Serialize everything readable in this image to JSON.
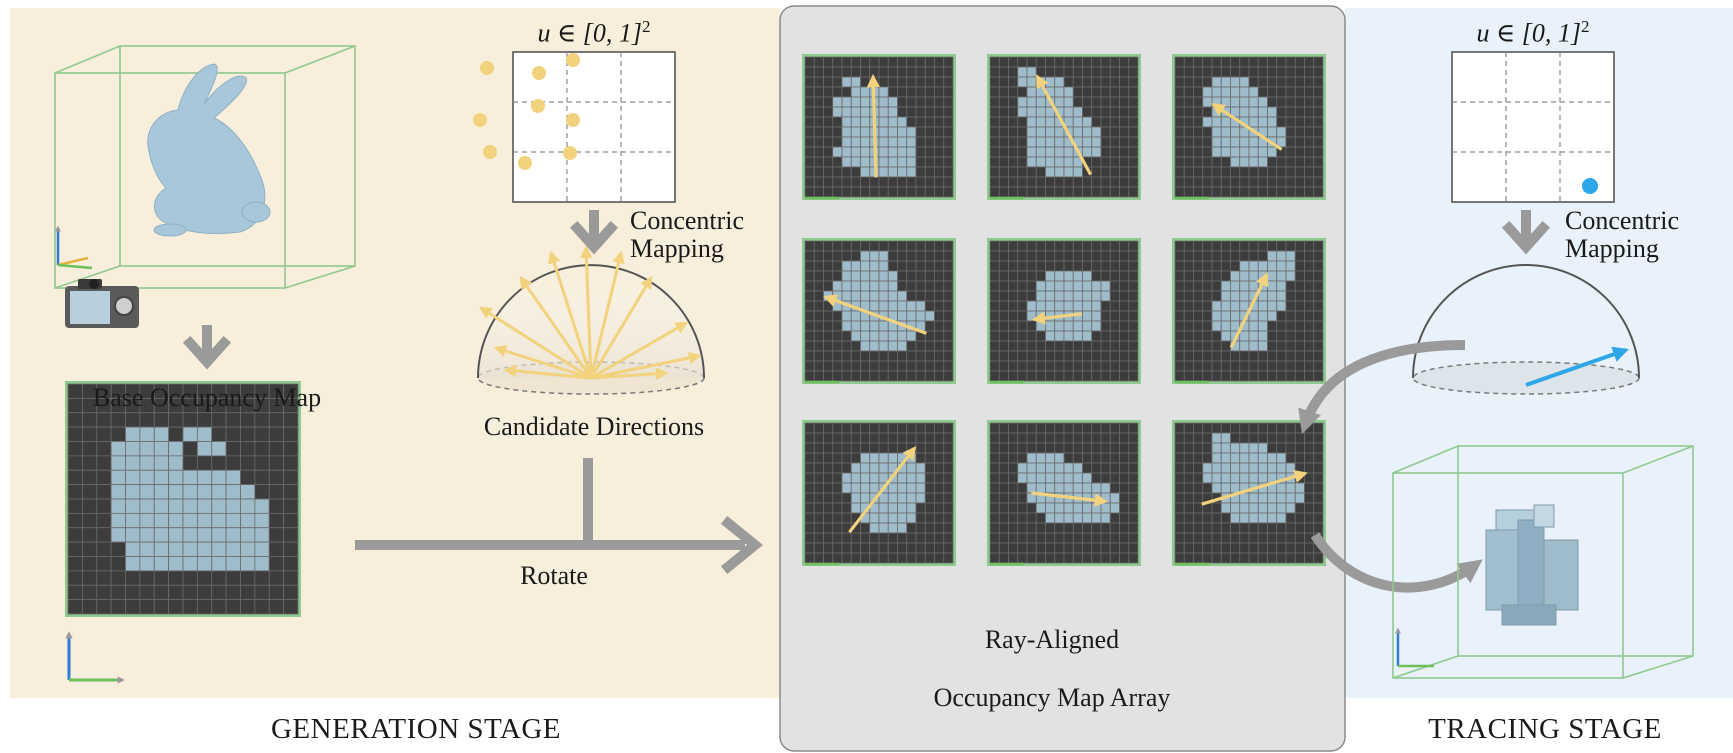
{
  "colors": {
    "generation_bg": "#f7eedb",
    "array_bg": "#e2e2e2",
    "tracing_bg": "#e9f2fa",
    "occupied_cell": "#9fbccb",
    "empty_cell": "#3c3c3c",
    "cell_line": "#6a6a6a",
    "map_border": "#8ec98e",
    "candidate_dir": "#f2d27c",
    "traced_dir": "#2ea7e8",
    "flow_arrow": "#9a9a9a",
    "bunny": "#a9c7da"
  },
  "labels": {
    "u_domain_left": "u ∈ [0, 1]",
    "u_domain_right": "u ∈ [0, 1]",
    "u_exponent": "2",
    "concentric_left": [
      "Concentric",
      "Mapping"
    ],
    "concentric_right": [
      "Concentric",
      "Mapping"
    ],
    "base_occupancy_map": "Base Occupancy Map",
    "candidate_directions": "Candidate Directions",
    "rotate": "Rotate",
    "array_title": [
      "Ray-Aligned",
      "Occupancy Map Array"
    ],
    "generation_stage": "GENERATION STAGE",
    "tracing_stage": "TRACING STAGE"
  },
  "icons": {
    "camera": "camera-icon",
    "bunny": "stanford-bunny",
    "axes": "xyz-axes-icon",
    "sample_point": "sample-dot-icon"
  },
  "base_map": {
    "grid_size": 16,
    "occupied_rows": [
      "................",
      "................",
      "................",
      "....xxx.xx......",
      "...xxxxx.xx.....",
      "...xxxxx........",
      "...xxxxxxxxx....",
      "...xxxxxxxxxx...",
      "...xxxxxxxxxxx..",
      "...xxxxxxxxxxx..",
      "...xxxxxxxxxxx..",
      "....xxxxxxxxxx..",
      "....xxxxxxxxxx..",
      "................",
      "................",
      "................"
    ]
  },
  "candidate_samples_left": 9,
  "array_maps": [
    {
      "rows": [
        "................",
        "................",
        "....xx..........",
        ".....xxxx.......",
        "...xxxxxxx......",
        "...xxxxxxx......",
        "....xxxxxxx.....",
        "....xxxxxxxx....",
        "....xxxxxxxx....",
        "...xxxxxxxxx....",
        "....xxxxxxxx....",
        "......xxxxxx....",
        "................",
        "................"
      ],
      "dir": [
        [
          0.48,
          0.86
        ],
        [
          0.46,
          0.14
        ]
      ]
    },
    {
      "rows": [
        "................",
        "...xx...........",
        "...xxxxx........",
        "....xxxxx.......",
        "...xxxxxx.......",
        "...xxxxxxx......",
        "....xxxxxxx.....",
        "....xxxxxxxx....",
        "....xxxxxxxx....",
        "....xxxxxxxx....",
        "....xxxxxx......",
        "......xxxx......",
        "................",
        "................"
      ],
      "dir": [
        [
          0.68,
          0.84
        ],
        [
          0.32,
          0.14
        ]
      ]
    },
    {
      "rows": [
        "................",
        "................",
        "....xxxx........",
        "...xxxxxx.......",
        "...xxxxxxx......",
        "....xxxxxxx.....",
        "...xxxxxxxx.....",
        "....xxxxxxxx....",
        "....xxxxxxxx....",
        "....xxxxxxx.....",
        "......xxxx......",
        "................",
        "................",
        "................"
      ],
      "dir": [
        [
          0.72,
          0.66
        ],
        [
          0.26,
          0.34
        ]
      ]
    },
    {
      "rows": [
        "................",
        "......xxx.......",
        "....xxxxx.......",
        "....xxxxxx......",
        "...xxxxxxx......",
        "..xxxxxxxxx.....",
        "...xxxxxxxxxx...",
        "....xxxxxxxxxx..",
        "....xxxxxxxxx...",
        ".....xxxxxxx....",
        "......xxxxx.....",
        "................",
        "................",
        "................"
      ],
      "dir": [
        [
          0.82,
          0.66
        ],
        [
          0.14,
          0.4
        ]
      ]
    },
    {
      "rows": [
        "................",
        "................",
        "................",
        "......xxxxx.....",
        ".....xxxxxxxx...",
        ".....xxxxxxxx...",
        "....xxxxxxxx....",
        "....xxxxxxxx....",
        ".....xxxxxxx....",
        "......xxxxx.....",
        "................",
        "................",
        "................",
        "................"
      ],
      "dir": [
        [
          0.62,
          0.52
        ],
        [
          0.3,
          0.56
        ]
      ]
    },
    {
      "rows": [
        "................",
        "..........xxx...",
        ".......xxxxxx...",
        "......xxxxxxx...",
        ".....xxxxxxx....",
        ".....xxxxxxx....",
        "....xxxxxxxx....",
        "....xxxxxxx.....",
        "....xxxxxx......",
        ".....xxxxx......",
        "......xxxx......",
        "................",
        "................",
        "................"
      ],
      "dir": [
        [
          0.38,
          0.76
        ],
        [
          0.62,
          0.24
        ]
      ]
    },
    {
      "rows": [
        "................",
        "................",
        "................",
        "......xxxxxx....",
        ".....xxxxxxxx...",
        "....xxxxxxxxx...",
        "....xxxxxxxxx...",
        ".....xxxxxxxx...",
        ".....xxxxxxx....",
        "......xxxxxx....",
        ".......xxxx.....",
        "................",
        "................",
        "................"
      ],
      "dir": [
        [
          0.3,
          0.78
        ],
        [
          0.74,
          0.18
        ]
      ]
    },
    {
      "rows": [
        "................",
        "................",
        "................",
        "....xxxx........",
        "...xxxxxxx......",
        "...xxxxxxxx.....",
        "....xxxxxxxxx...",
        "....xxxxxxxxxx..",
        ".....xxxxxxxxx..",
        "......xxxxxxx...",
        "................",
        "................",
        "................",
        "................"
      ],
      "dir": [
        [
          0.28,
          0.5
        ],
        [
          0.78,
          0.56
        ]
      ]
    },
    {
      "rows": [
        "................",
        "....xx..........",
        "....xxxxxx......",
        "....xxxxxxxx....",
        "...xxxxxxxxxx...",
        "...xxxxxxxxxx...",
        "....xxxxxxxxxx..",
        ".....xxxxxxxxx..",
        ".....xxxxxxxx...",
        "......xxxxxx....",
        "................",
        "................",
        "................",
        "................"
      ],
      "dir": [
        [
          0.18,
          0.58
        ],
        [
          0.88,
          0.36
        ]
      ]
    }
  ]
}
